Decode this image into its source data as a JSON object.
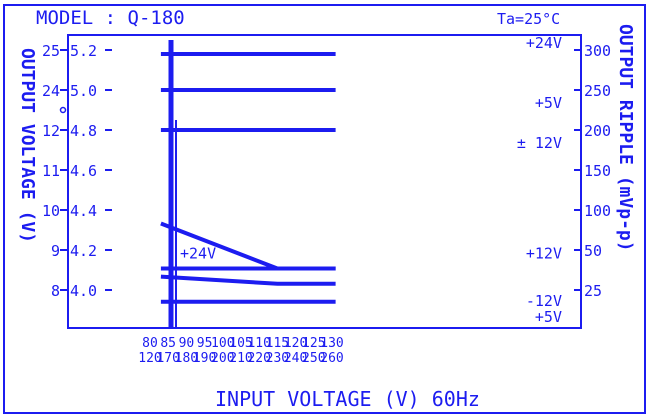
{
  "colors": {
    "ink": "#1c1cf0",
    "background": "#ffffff"
  },
  "chart_data": {
    "type": "line",
    "title": "MODEL : Q-180",
    "condition": "Ta=25°C",
    "xlabel": "INPUT VOLTAGE (V) 60Hz",
    "ylabel_left": "OUTPUT VOLTAGE (V)",
    "ylabel_right": "OUTPUT RIPPLE (mVp-p)",
    "x_ticks_low": [
      "80",
      "85",
      "90",
      "95",
      "100",
      "105",
      "110",
      "115",
      "120",
      "125",
      "130"
    ],
    "x_ticks_high": [
      "170",
      "180",
      "190",
      "200",
      "210",
      "220",
      "230",
      "240",
      "250",
      "260"
    ],
    "x_ticks_high_first": "120",
    "y_left_outer_ticks": [
      "25",
      "24",
      "12",
      "11",
      "10",
      "9",
      "8"
    ],
    "y_left_inner_ticks": [
      "5.2",
      "5.0",
      "4.8",
      "4.6",
      "4.4",
      "4.2",
      "4.0"
    ],
    "y_right_ticks": [
      "300",
      "250",
      "200",
      "150",
      "100",
      "50",
      "25"
    ],
    "ranges": {
      "output_voltage_5v_side": [
        3.9,
        5.25
      ],
      "ripple_mVpp": [
        0,
        310
      ],
      "input_voltage_low_range": [
        80,
        131
      ]
    },
    "series": [
      {
        "name": "+24V",
        "group": "output voltage",
        "x": [
          83,
          131
        ],
        "y": [
          24.9,
          24.9
        ]
      },
      {
        "name": "+5V",
        "group": "output voltage",
        "x": [
          83,
          131
        ],
        "y": [
          5.0,
          5.0
        ]
      },
      {
        "name": "± 12V",
        "group": "output voltage",
        "x": [
          83,
          131
        ],
        "y": [
          12.0,
          12.0
        ]
      },
      {
        "name": "+24V",
        "group": "output ripple",
        "x": [
          83,
          115,
          131
        ],
        "y": [
          115,
          65,
          65
        ]
      },
      {
        "name": "+12V",
        "group": "output ripple",
        "x": [
          83,
          131
        ],
        "y": [
          65,
          65
        ]
      },
      {
        "name": "-12V",
        "group": "output ripple",
        "x": [
          83,
          115,
          131
        ],
        "y": [
          56,
          48,
          48
        ]
      },
      {
        "name": "+5V",
        "group": "output ripple",
        "x": [
          83,
          131
        ],
        "y": [
          28,
          28
        ]
      }
    ],
    "series_labels": [
      "+24V",
      "+5V",
      "± 12V",
      "+12V",
      "+24V",
      "-12V",
      "+5V"
    ]
  }
}
